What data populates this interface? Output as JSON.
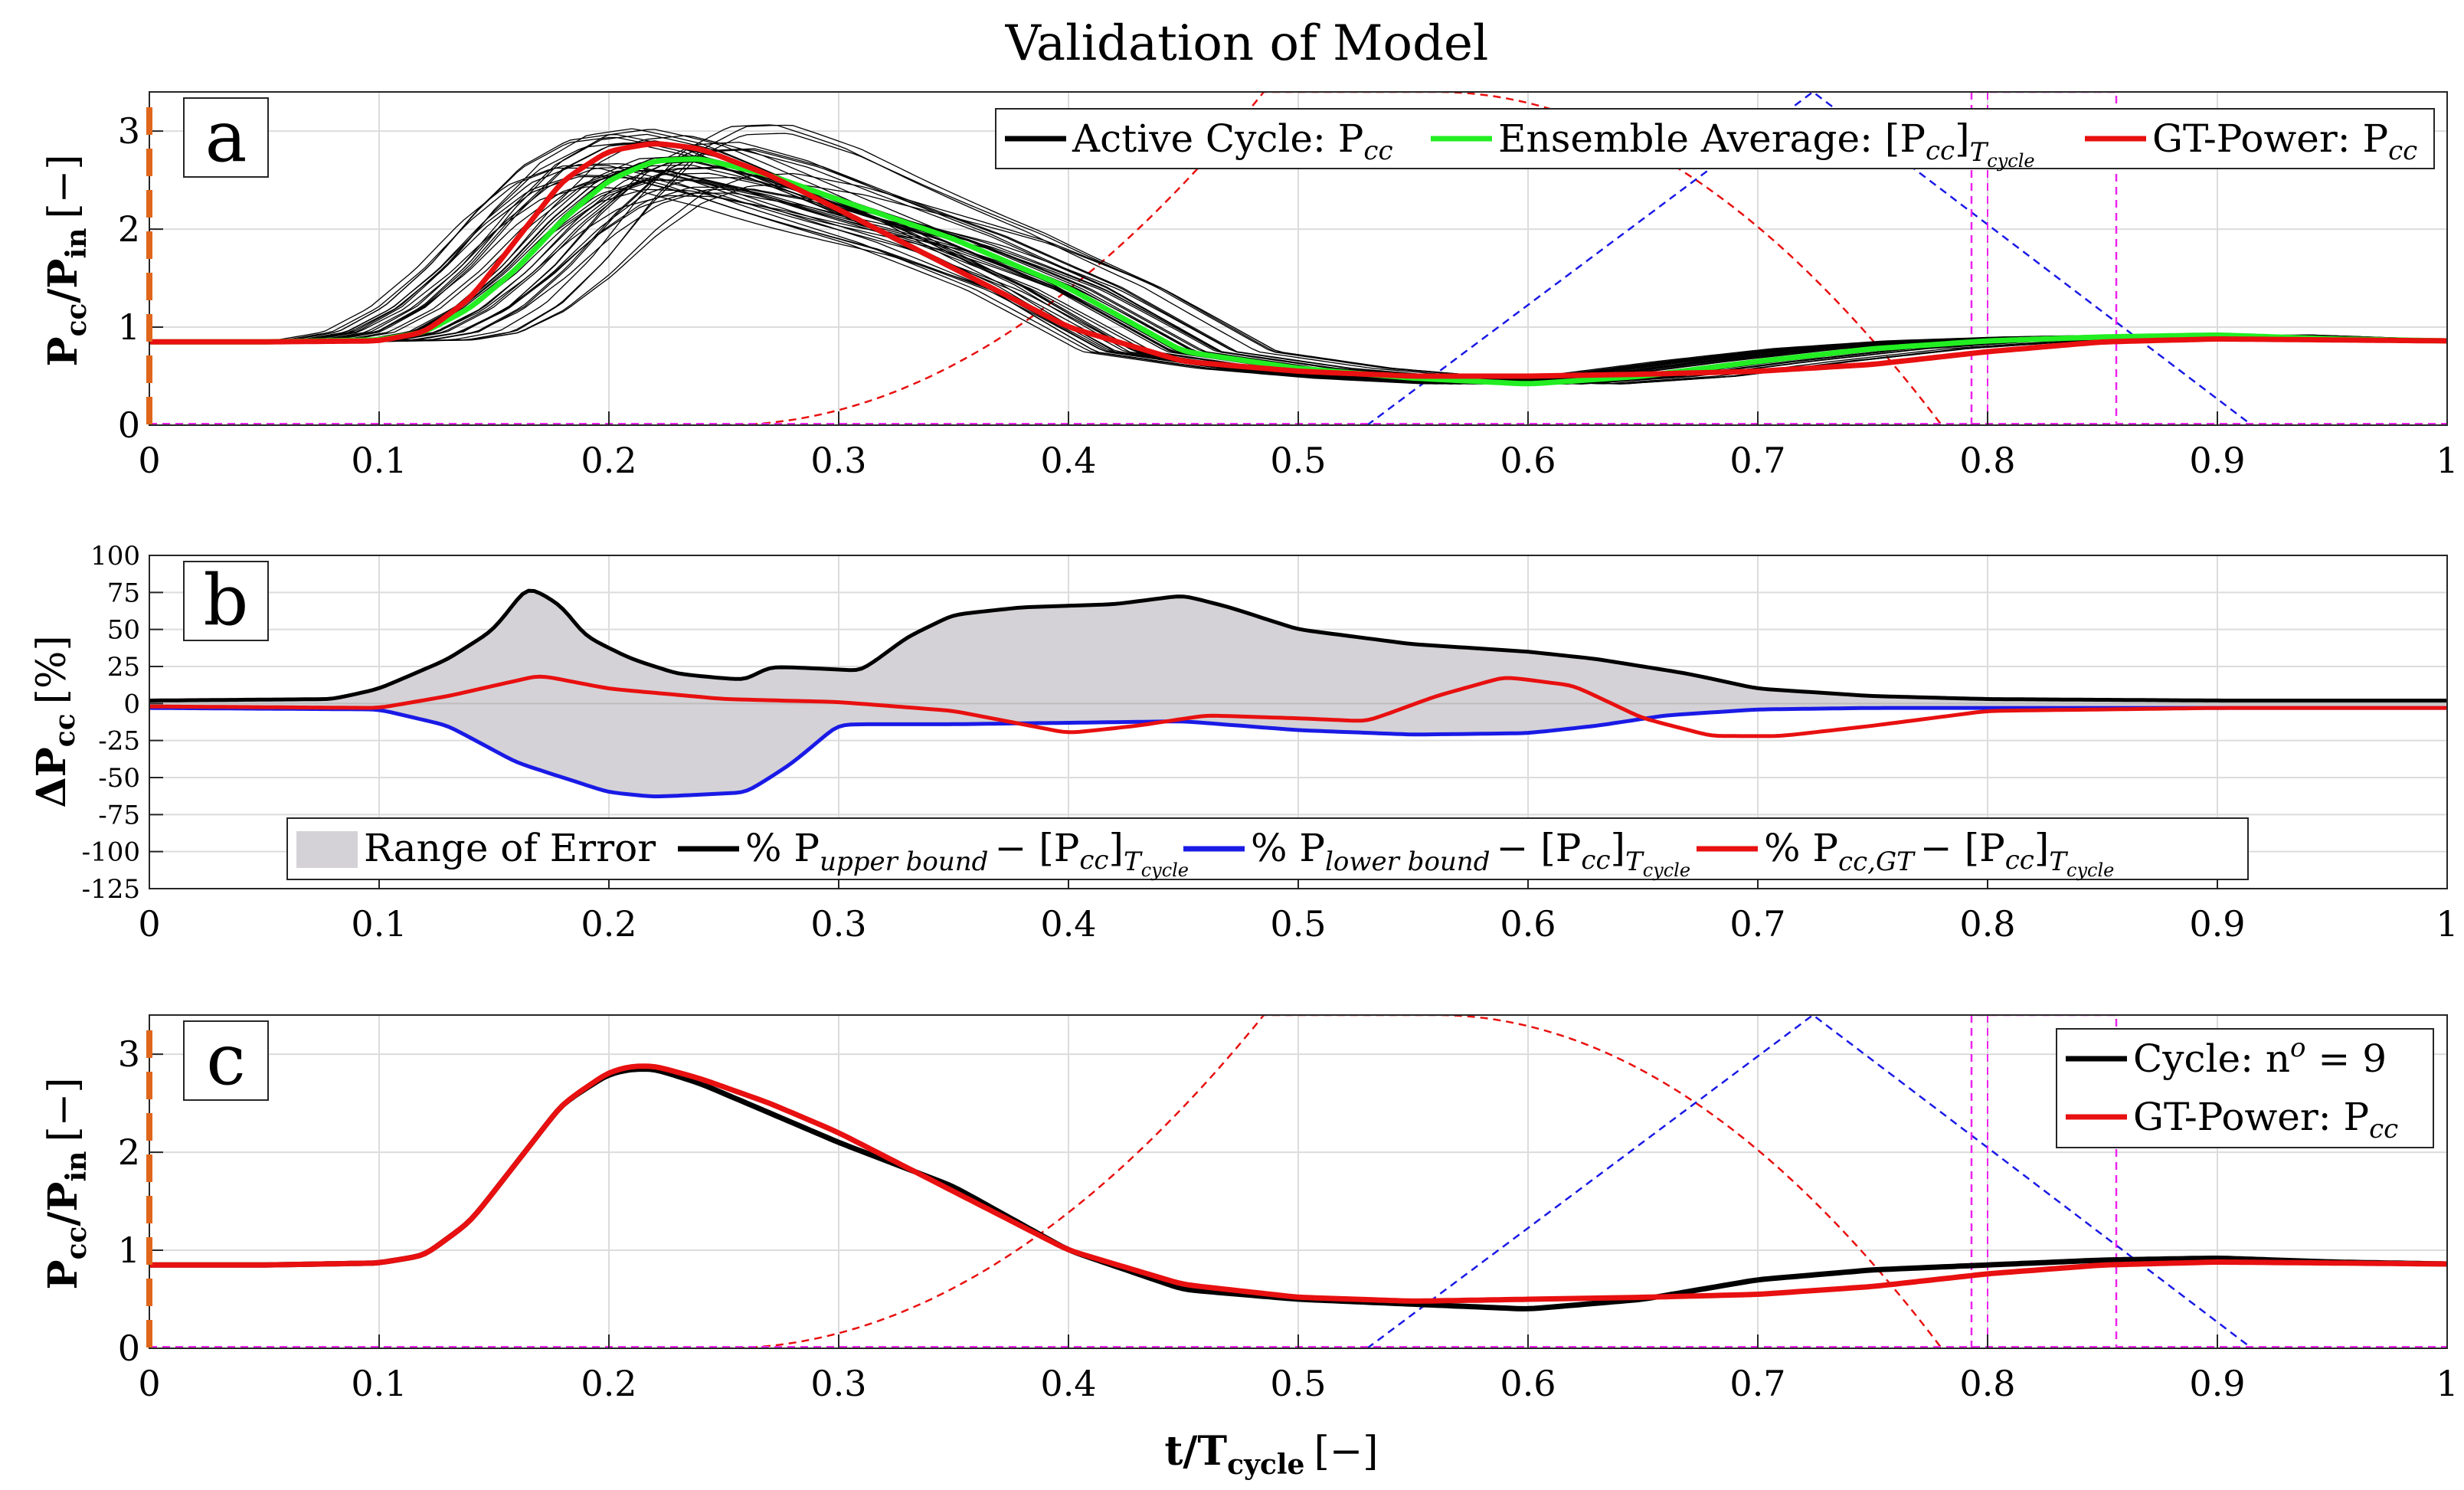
{
  "figure": {
    "title": "Validation of Model",
    "xlabel": "t/T",
    "xlabel_sub": "cycle",
    "xlabel_unit": "[−]",
    "x_ticks": [
      "0",
      "0.1",
      "0.2",
      "0.3",
      "0.4",
      "0.5",
      "0.6",
      "0.7",
      "0.8",
      "0.9",
      "1"
    ]
  },
  "colors": {
    "active_cycle": "#000000",
    "ensemble": "#22ee22",
    "gt_power": "#e81010",
    "upper_bound": "#000000",
    "lower_bound": "#1a1ae6",
    "range_fill": "#d4d2d6",
    "valve_red": "#e81010",
    "valve_blue": "#1a1ae6",
    "valve_magenta": "#ee22ee",
    "y_axis_marker": "#e0661c"
  },
  "chart_data": [
    {
      "panel": "a",
      "type": "line",
      "ylabel": "P",
      "ylabel_sub1": "cc",
      "ylabel_mid": "/P",
      "ylabel_sub2": "in",
      "ylabel_unit": "[−]",
      "xlim": [
        0,
        1
      ],
      "ylim": [
        0,
        3.4
      ],
      "y_ticks": [
        "0",
        "1",
        "2",
        "3"
      ],
      "grid": true,
      "legend": [
        "Active Cycle: P",
        "Ensemble Average: [P",
        "GT-Power: P"
      ],
      "legend_subs": [
        "cc",
        "cc",
        "cc"
      ],
      "legend_ensemble_tail": "]",
      "legend_ensemble_sub": "T",
      "legend_ensemble_subsub": "cycle",
      "legend_placement": "top-right",
      "series": [
        {
          "name": "Ensemble Average",
          "x": [
            0,
            0.05,
            0.1,
            0.12,
            0.14,
            0.16,
            0.18,
            0.2,
            0.22,
            0.24,
            0.27,
            0.3,
            0.35,
            0.4,
            0.45,
            0.5,
            0.55,
            0.6,
            0.65,
            0.7,
            0.75,
            0.8,
            0.85,
            0.9,
            0.95,
            1
          ],
          "y": [
            0.85,
            0.85,
            0.87,
            0.95,
            1.2,
            1.6,
            2.1,
            2.5,
            2.7,
            2.72,
            2.55,
            2.3,
            1.9,
            1.4,
            0.75,
            0.58,
            0.48,
            0.42,
            0.5,
            0.65,
            0.78,
            0.86,
            0.9,
            0.92,
            0.88,
            0.86
          ]
        },
        {
          "name": "GT-Power",
          "x": [
            0,
            0.05,
            0.1,
            0.12,
            0.14,
            0.16,
            0.18,
            0.2,
            0.22,
            0.24,
            0.27,
            0.3,
            0.35,
            0.4,
            0.45,
            0.5,
            0.55,
            0.6,
            0.65,
            0.7,
            0.75,
            0.8,
            0.85,
            0.9,
            0.95,
            1
          ],
          "y": [
            0.85,
            0.85,
            0.86,
            0.95,
            1.3,
            1.9,
            2.5,
            2.8,
            2.88,
            2.82,
            2.55,
            2.2,
            1.6,
            1.0,
            0.65,
            0.55,
            0.5,
            0.5,
            0.52,
            0.55,
            0.62,
            0.75,
            0.85,
            0.88,
            0.87,
            0.86
          ]
        }
      ]
    },
    {
      "panel": "b",
      "type": "area",
      "ylabel": "ΔP",
      "ylabel_sub1": "cc",
      "ylabel_unit": "[%]",
      "xlim": [
        0,
        1
      ],
      "ylim": [
        -125,
        100
      ],
      "y_ticks": [
        "100",
        "75",
        "50",
        "25",
        "0",
        "-25",
        "-50",
        "-75",
        "-100",
        "-125"
      ],
      "grid": true,
      "legend": [
        "Range of Error",
        "% P",
        "% P",
        "% P"
      ],
      "legend_subs": [
        "",
        "upper bound",
        "lower bound",
        "cc,GT"
      ],
      "legend_tail": "− [P",
      "legend_tail_sub": "cc",
      "legend_tail_end": "]",
      "legend_tail_sub2": "T",
      "legend_tail_subsub": "cycle",
      "legend_placement": "bottom-center",
      "series": [
        {
          "name": "upper bound",
          "x": [
            0,
            0.08,
            0.1,
            0.13,
            0.15,
            0.165,
            0.18,
            0.19,
            0.21,
            0.23,
            0.25,
            0.26,
            0.27,
            0.3,
            0.31,
            0.33,
            0.35,
            0.38,
            0.42,
            0.44,
            0.45,
            0.47,
            0.5,
            0.55,
            0.6,
            0.63,
            0.67,
            0.7,
            0.75,
            0.8,
            0.9,
            1
          ],
          "y": [
            2,
            3,
            10,
            30,
            50,
            80,
            65,
            45,
            30,
            20,
            17,
            16,
            25,
            23,
            22,
            45,
            60,
            65,
            67,
            71,
            73,
            65,
            50,
            40,
            35,
            30,
            20,
            10,
            5,
            3,
            2,
            2
          ]
        },
        {
          "name": "lower bound",
          "x": [
            0,
            0.1,
            0.13,
            0.16,
            0.2,
            0.22,
            0.26,
            0.28,
            0.3,
            0.35,
            0.4,
            0.45,
            0.5,
            0.55,
            0.6,
            0.63,
            0.66,
            0.7,
            0.75,
            0.8,
            0.9,
            1
          ],
          "y": [
            -3,
            -4,
            -15,
            -40,
            -60,
            -63,
            -60,
            -40,
            -14,
            -14,
            -13,
            -12,
            -18,
            -21,
            -20,
            -15,
            -8,
            -4,
            -3,
            -3,
            -3,
            -3
          ]
        },
        {
          "name": "cc,GT",
          "x": [
            0,
            0.1,
            0.13,
            0.17,
            0.2,
            0.25,
            0.3,
            0.35,
            0.4,
            0.43,
            0.46,
            0.5,
            0.53,
            0.56,
            0.59,
            0.62,
            0.65,
            0.68,
            0.71,
            0.75,
            0.8,
            0.9,
            1
          ],
          "y": [
            -2,
            -3,
            5,
            19,
            10,
            3,
            1,
            -5,
            -20,
            -15,
            -8,
            -10,
            -12,
            5,
            18,
            12,
            -10,
            -22,
            -22,
            -15,
            -5,
            -3,
            -3
          ]
        }
      ]
    },
    {
      "panel": "c",
      "type": "line",
      "ylabel": "P",
      "ylabel_sub1": "cc",
      "ylabel_mid": "/P",
      "ylabel_sub2": "in",
      "ylabel_unit": "[−]",
      "xlim": [
        0,
        1
      ],
      "ylim": [
        0,
        3.4
      ],
      "y_ticks": [
        "0",
        "1",
        "2",
        "3"
      ],
      "grid": true,
      "legend": [
        "Cycle: n",
        "GT-Power: P"
      ],
      "legend_cycle_sup": "o",
      "legend_cycle_tail": " = 9",
      "legend_gt_sub": "cc",
      "legend_placement": "top-right",
      "series": [
        {
          "name": "Cycle n = 9",
          "x": [
            0,
            0.05,
            0.1,
            0.12,
            0.14,
            0.16,
            0.18,
            0.2,
            0.21,
            0.22,
            0.24,
            0.27,
            0.3,
            0.35,
            0.4,
            0.45,
            0.5,
            0.55,
            0.6,
            0.65,
            0.7,
            0.75,
            0.8,
            0.85,
            0.9,
            0.95,
            1
          ],
          "y": [
            0.85,
            0.85,
            0.87,
            0.95,
            1.3,
            1.9,
            2.5,
            2.8,
            2.85,
            2.85,
            2.7,
            2.4,
            2.1,
            1.65,
            1.0,
            0.6,
            0.5,
            0.45,
            0.4,
            0.5,
            0.7,
            0.8,
            0.85,
            0.9,
            0.92,
            0.88,
            0.86
          ]
        },
        {
          "name": "GT-Power",
          "x": [
            0,
            0.05,
            0.1,
            0.12,
            0.14,
            0.16,
            0.18,
            0.2,
            0.21,
            0.22,
            0.24,
            0.27,
            0.3,
            0.35,
            0.4,
            0.45,
            0.5,
            0.55,
            0.6,
            0.65,
            0.7,
            0.75,
            0.8,
            0.85,
            0.9,
            0.95,
            1
          ],
          "y": [
            0.85,
            0.85,
            0.87,
            0.95,
            1.3,
            1.9,
            2.5,
            2.82,
            2.88,
            2.88,
            2.75,
            2.5,
            2.2,
            1.6,
            1.0,
            0.65,
            0.52,
            0.48,
            0.5,
            0.52,
            0.55,
            0.63,
            0.76,
            0.85,
            0.88,
            0.87,
            0.86
          ]
        }
      ]
    }
  ]
}
